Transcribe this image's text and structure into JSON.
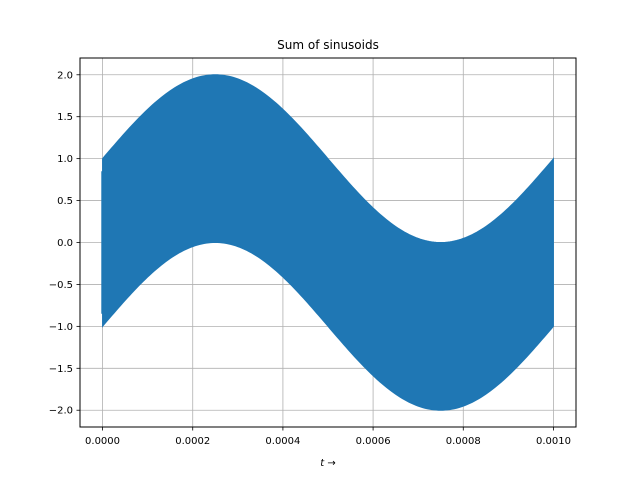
{
  "chart_data": {
    "type": "area",
    "title": "Sum of sinusoids",
    "xlabel": "t →",
    "ylabel": "",
    "xlim": [
      -5e-05,
      0.00105
    ],
    "ylim": [
      -2.2,
      2.2
    ],
    "grid": true,
    "x_ticks": [
      "0.0000",
      "0.0002",
      "0.0004",
      "0.0006",
      "0.0008",
      "0.0010"
    ],
    "x_tick_values": [
      0,
      0.0002,
      0.0004,
      0.0006,
      0.0008,
      0.001
    ],
    "y_ticks": [
      "2.0",
      "1.5",
      "1.0",
      "0.5",
      "0.0",
      "−0.5",
      "−1.0",
      "−1.5",
      "−2.0"
    ],
    "y_tick_values": [
      2.0,
      1.5,
      1.0,
      0.5,
      0.0,
      -0.5,
      -1.0,
      -1.5,
      -2.0
    ],
    "series": [
      {
        "color": "#1f77b4",
        "x_range": [
          0,
          0.001
        ],
        "upper_envelope": {
          "x": [
            0,
            0.00025,
            0.0005,
            0.00075,
            0.001
          ],
          "y": [
            1.0,
            2.0,
            1.0,
            0.0,
            1.0
          ]
        },
        "lower_envelope": {
          "x": [
            0,
            0.00025,
            0.0005,
            0.00075,
            0.001
          ],
          "y": [
            -1.0,
            0.0,
            -1.0,
            -2.0,
            -1.0
          ]
        }
      }
    ]
  }
}
